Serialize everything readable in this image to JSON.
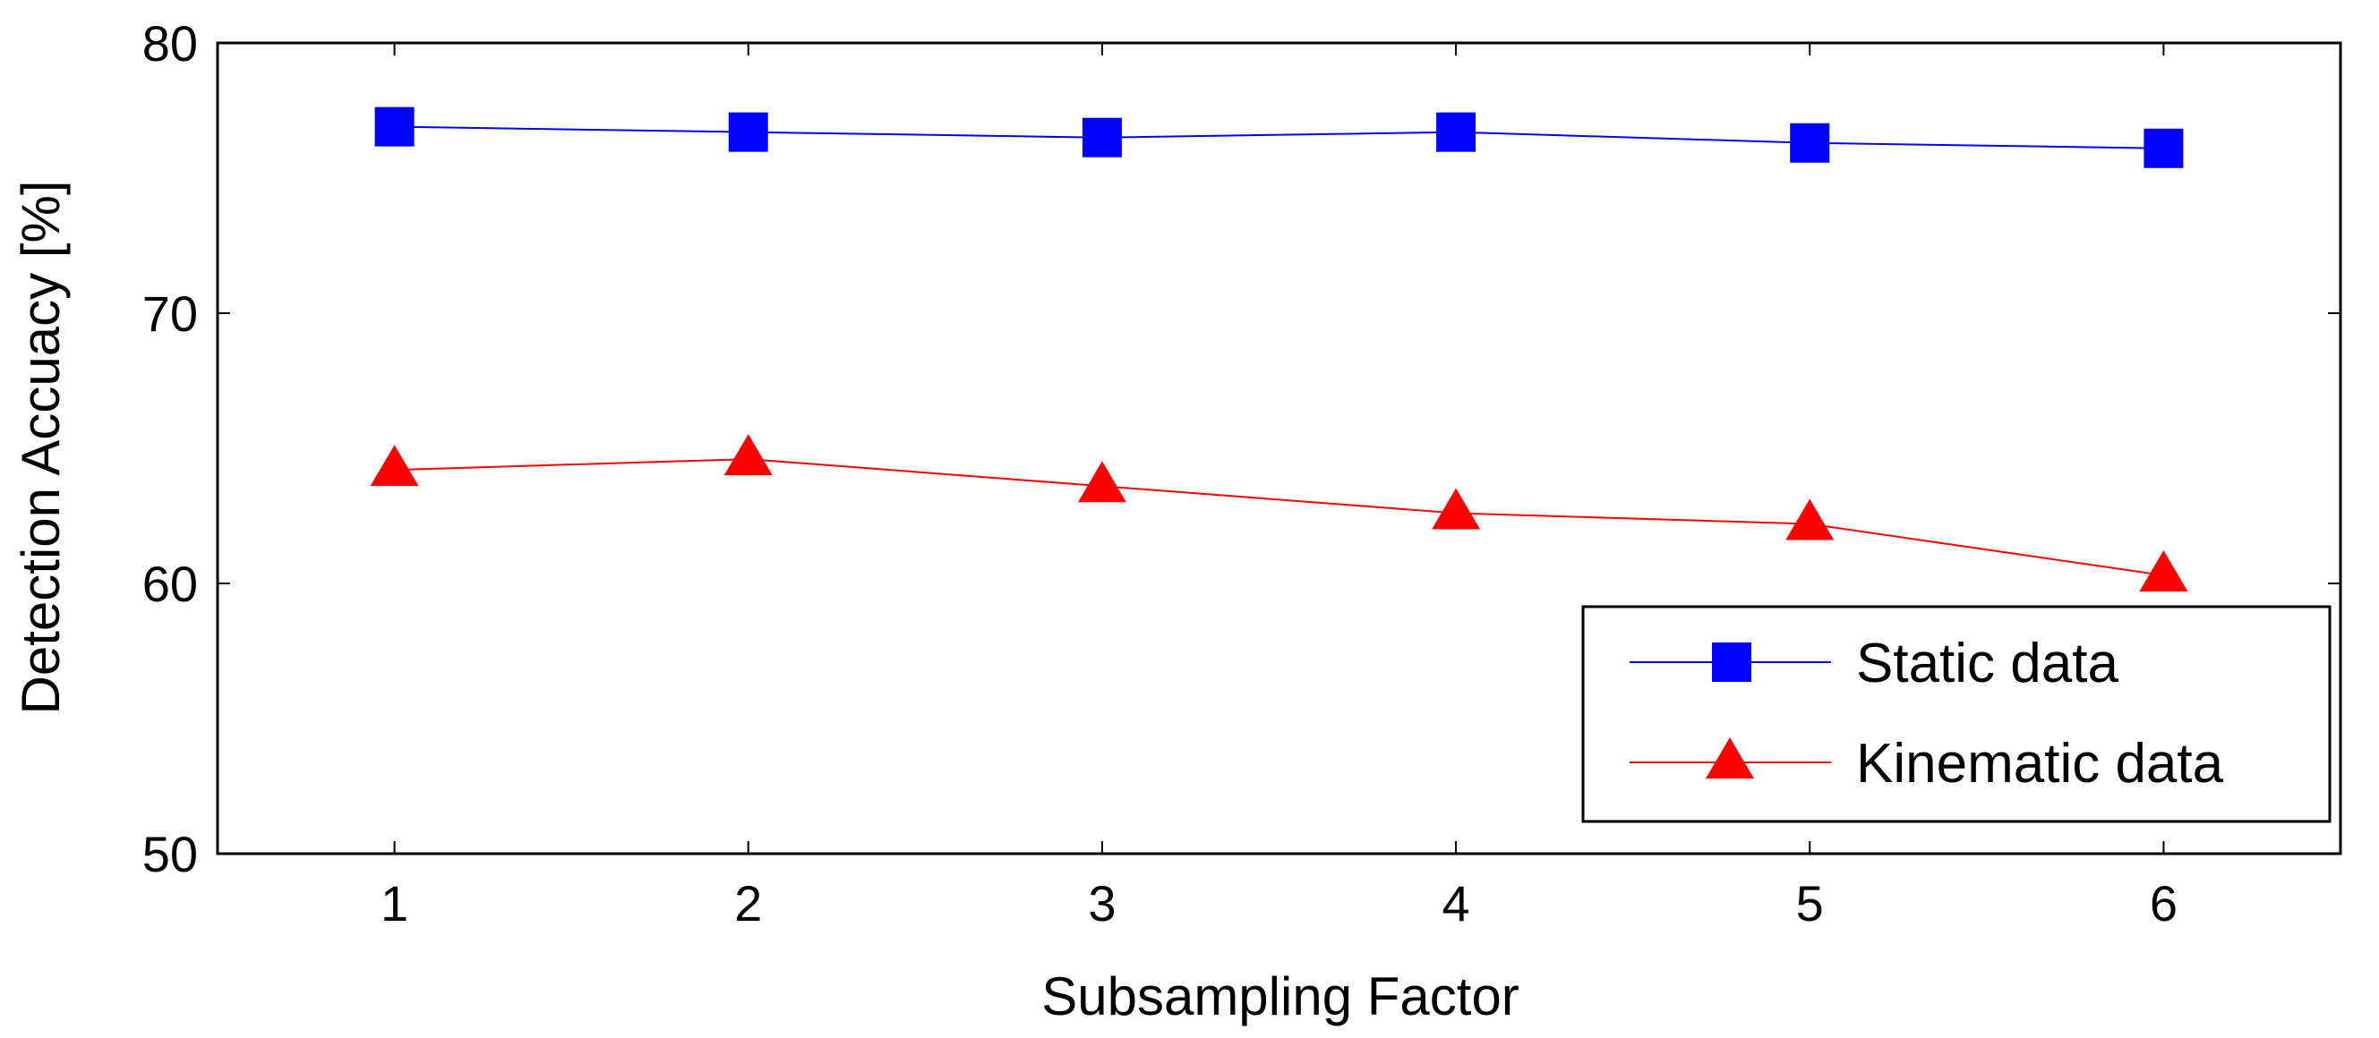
{
  "chart_data": {
    "type": "line",
    "title": "",
    "xlabel": "Subsampling Factor",
    "ylabel": "Detection Accuacy [%]",
    "x": [
      1,
      2,
      3,
      4,
      5,
      6
    ],
    "xlim": [
      0.5,
      6.5
    ],
    "ylim": [
      50,
      80
    ],
    "xticks": [
      "1",
      "2",
      "3",
      "4",
      "5",
      "6"
    ],
    "yticks": [
      "50",
      "60",
      "70",
      "80"
    ],
    "grid": false,
    "legend_position": "bottom-right",
    "series": [
      {
        "name": "Static data",
        "marker": "square",
        "color": "#0000ff",
        "values": [
          76.9,
          76.7,
          76.5,
          76.7,
          76.3,
          76.1
        ]
      },
      {
        "name": "Kinematic data",
        "marker": "triangle",
        "color": "#ff0000",
        "values": [
          64.2,
          64.6,
          63.6,
          62.6,
          62.2,
          60.3
        ]
      }
    ]
  }
}
